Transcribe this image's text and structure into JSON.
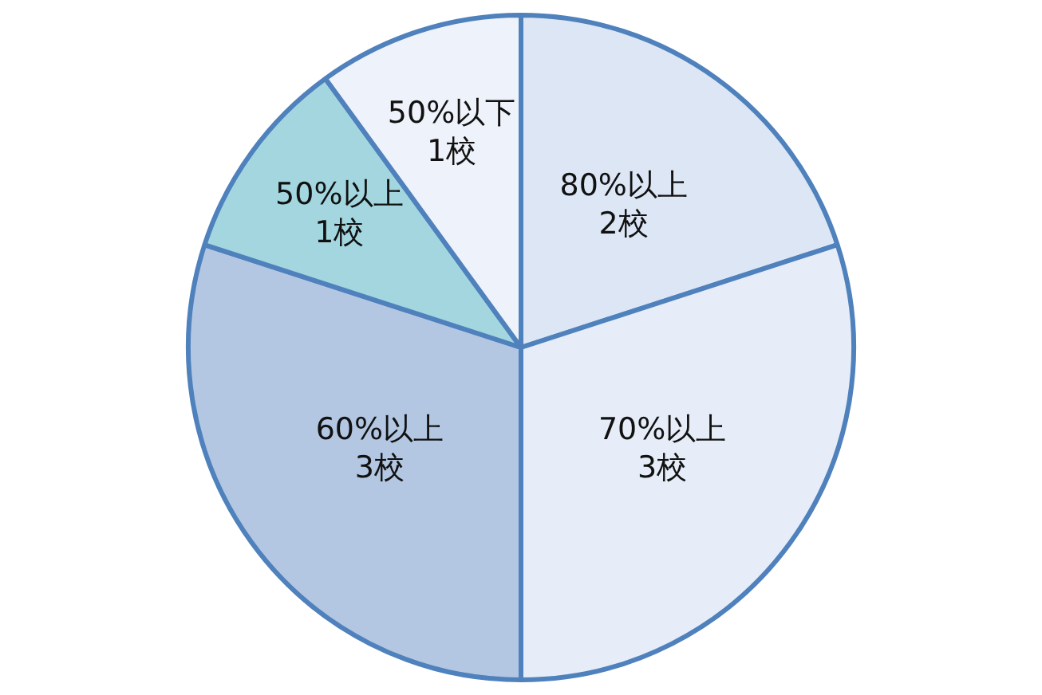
{
  "chart_data": {
    "type": "pie",
    "categories": [
      "80%以上",
      "70%以上",
      "60%以上",
      "50%以上",
      "50%以下"
    ],
    "values": [
      2,
      3,
      3,
      1,
      1
    ],
    "value_labels": [
      "2校",
      "3校",
      "3校",
      "1校",
      "1校"
    ],
    "colors": [
      "#dce6f4",
      "#e6edf8",
      "#b3c7e2",
      "#a3d6df",
      "#eef2fa"
    ],
    "legend": false
  }
}
